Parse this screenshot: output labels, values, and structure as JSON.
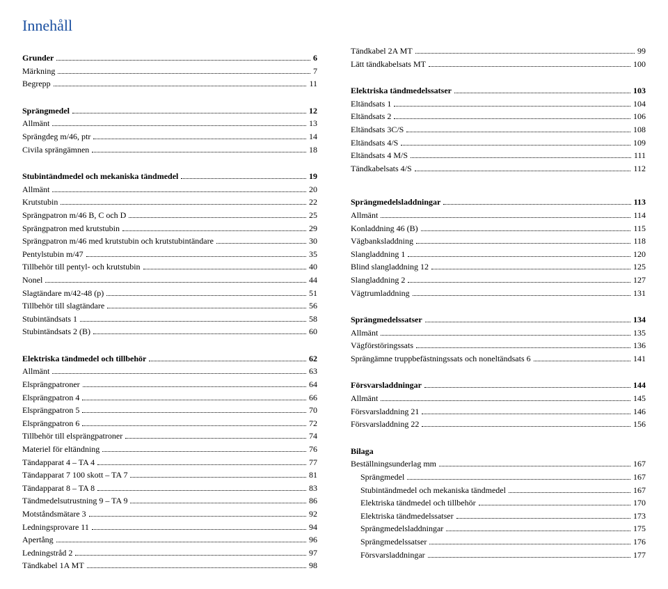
{
  "title": "Innehåll",
  "title_color": "#1a4fa0",
  "font_family": "Times New Roman",
  "left": [
    {
      "label": "Grunder",
      "page": 6,
      "bold": true
    },
    {
      "label": "Märkning",
      "page": 7
    },
    {
      "label": "Begrepp",
      "page": 11
    },
    {
      "gap": true
    },
    {
      "label": "Sprängmedel",
      "page": 12,
      "bold": true
    },
    {
      "label": "Allmänt",
      "page": 13
    },
    {
      "label": "Sprängdeg m/46, ptr",
      "page": 14
    },
    {
      "label": "Civila sprängämnen",
      "page": 18
    },
    {
      "gap": true
    },
    {
      "label": "Stubintändmedel och mekaniska tändmedel",
      "page": 19,
      "bold": true
    },
    {
      "label": "Allmänt",
      "page": 20
    },
    {
      "label": "Krutstubin",
      "page": 22
    },
    {
      "label": "Sprängpatron m/46 B, C och D",
      "page": 25
    },
    {
      "label": "Sprängpatron med krutstubin",
      "page": 29
    },
    {
      "label": "Sprängpatron m/46 med krutstubin och krutstubintändare",
      "page": 30
    },
    {
      "label": "Pentylstubin m/47",
      "page": 35
    },
    {
      "label": "Tillbehör till pentyl- och krutstubin",
      "page": 40
    },
    {
      "label": "Nonel",
      "page": 44
    },
    {
      "label": "Slagtändare m/42-48 (p)",
      "page": 51
    },
    {
      "label": "Tillbehör till slagtändare",
      "page": 56
    },
    {
      "label": "Stubintändsats 1",
      "page": 58
    },
    {
      "label": "Stubintändsats 2 (B)",
      "page": 60
    },
    {
      "gap": true
    },
    {
      "label": "Elektriska tändmedel och tillbehör",
      "page": 62,
      "bold": true
    },
    {
      "label": "Allmänt",
      "page": 63
    },
    {
      "label": "Elsprängpatroner",
      "page": 64
    },
    {
      "label": "Elsprängpatron 4",
      "page": 66
    },
    {
      "label": "Elsprängpatron 5",
      "page": 70
    },
    {
      "label": "Elsprängpatron 6",
      "page": 72
    },
    {
      "label": "Tillbehör till elsprängpatroner",
      "page": 74
    },
    {
      "label": "Materiel för eltändning",
      "page": 76
    },
    {
      "label": "Tändapparat 4 – TA 4",
      "page": 77
    },
    {
      "label": "Tändapparat 7 100 skott – TA 7",
      "page": 81
    },
    {
      "label": "Tändapparat 8 – TA 8",
      "page": 83
    },
    {
      "label": "Tändmedelsutrustning 9 – TA 9",
      "page": 86
    },
    {
      "label": "Motståndsmätare 3",
      "page": 92
    },
    {
      "label": "Ledningsprovare 11",
      "page": 94
    },
    {
      "label": "Apertång",
      "page": 96
    },
    {
      "label": "Ledningstråd 2",
      "page": 97
    },
    {
      "label": "Tändkabel 1A MT",
      "page": 98
    }
  ],
  "right": [
    {
      "label": "Tändkabel 2A MT",
      "page": 99
    },
    {
      "label": "Lätt tändkabelsats MT",
      "page": 100
    },
    {
      "gap": true
    },
    {
      "label": "Elektriska tändmedelssatser",
      "page": 103,
      "bold": true
    },
    {
      "label": "Eltändsats 1",
      "page": 104
    },
    {
      "label": "Eltändsats 2",
      "page": 106
    },
    {
      "label": "Eltändsats 3C/S",
      "page": 108
    },
    {
      "label": "Eltändsats 4/S",
      "page": 109
    },
    {
      "label": "Eltändsats 4 M/S",
      "page": 111
    },
    {
      "label": "Tändkabelsats 4/S",
      "page": 112
    },
    {
      "gap": true
    },
    {
      "gap": true
    },
    {
      "label": "Sprängmedelsladdningar",
      "page": 113,
      "bold": true
    },
    {
      "label": "Allmänt",
      "page": 114
    },
    {
      "label": "Konladdning 46 (B)",
      "page": 115
    },
    {
      "label": "Vägbanksladdning",
      "page": 118
    },
    {
      "label": "Slangladdning 1",
      "page": 120
    },
    {
      "label": "Blind slangladdning 12",
      "page": 125
    },
    {
      "label": "Slangladdning 2",
      "page": 127
    },
    {
      "label": "Vägtrumladdning",
      "page": 131
    },
    {
      "gap": true
    },
    {
      "label": "Sprängmedelssatser",
      "page": 134,
      "bold": true
    },
    {
      "label": "Allmänt",
      "page": 135
    },
    {
      "label": "Vägförstöringssats",
      "page": 136
    },
    {
      "label": "Sprängämne truppbefästningssats och noneltändsats 6",
      "page": 141
    },
    {
      "gap": true
    },
    {
      "label": "Försvarsladdningar",
      "page": 144,
      "bold": true
    },
    {
      "label": "Allmänt",
      "page": 145
    },
    {
      "label": "Försvarsladdning 21",
      "page": 146
    },
    {
      "label": "Försvarsladdning 22",
      "page": 156
    },
    {
      "gap": true
    },
    {
      "label": "Bilaga",
      "bold": true,
      "no_page": true
    },
    {
      "label": "Beställningsunderlag mm",
      "page": 167
    },
    {
      "label": "Sprängmedel",
      "page": 167,
      "indent": true
    },
    {
      "label": "Stubintändmedel och mekaniska tändmedel",
      "page": 167,
      "indent": true
    },
    {
      "label": "Elektriska tändmedel och tillbehör",
      "page": 170,
      "indent": true
    },
    {
      "label": "Elektriska tändmedelssatser",
      "page": 173,
      "indent": true
    },
    {
      "label": "Sprängmedelsladdningar",
      "page": 175,
      "indent": true
    },
    {
      "label": "Sprängmedelssatser",
      "page": 176,
      "indent": true
    },
    {
      "label": "Försvarsladdningar",
      "page": 177,
      "indent": true
    }
  ]
}
